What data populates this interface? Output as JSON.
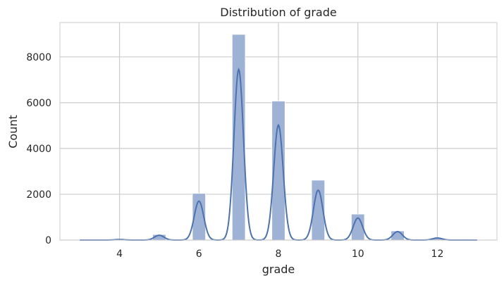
{
  "chart_data": {
    "type": "bar",
    "title": "Distribution of grade",
    "xlabel": "grade",
    "ylabel": "Count",
    "xlim": [
      2.5,
      13.5
    ],
    "ylim": [
      0,
      9500
    ],
    "xticks": [
      4,
      6,
      8,
      10,
      12
    ],
    "yticks": [
      0,
      2000,
      4000,
      6000,
      8000
    ],
    "grid": true,
    "bar_color": "#9eb2d6",
    "line_color": "#4c72b0",
    "histogram": {
      "bin_centers": [
        3,
        4,
        5,
        6,
        7,
        8,
        9,
        10,
        11,
        12,
        13
      ],
      "counts": [
        3,
        29,
        242,
        2038,
        8981,
        6068,
        2615,
        1134,
        399,
        90,
        13
      ]
    },
    "kde_peaks": {
      "x": [
        4,
        5,
        6,
        7,
        8,
        9,
        10,
        11,
        12
      ],
      "y": [
        25,
        210,
        1700,
        7450,
        5020,
        2180,
        960,
        370,
        90
      ]
    }
  }
}
